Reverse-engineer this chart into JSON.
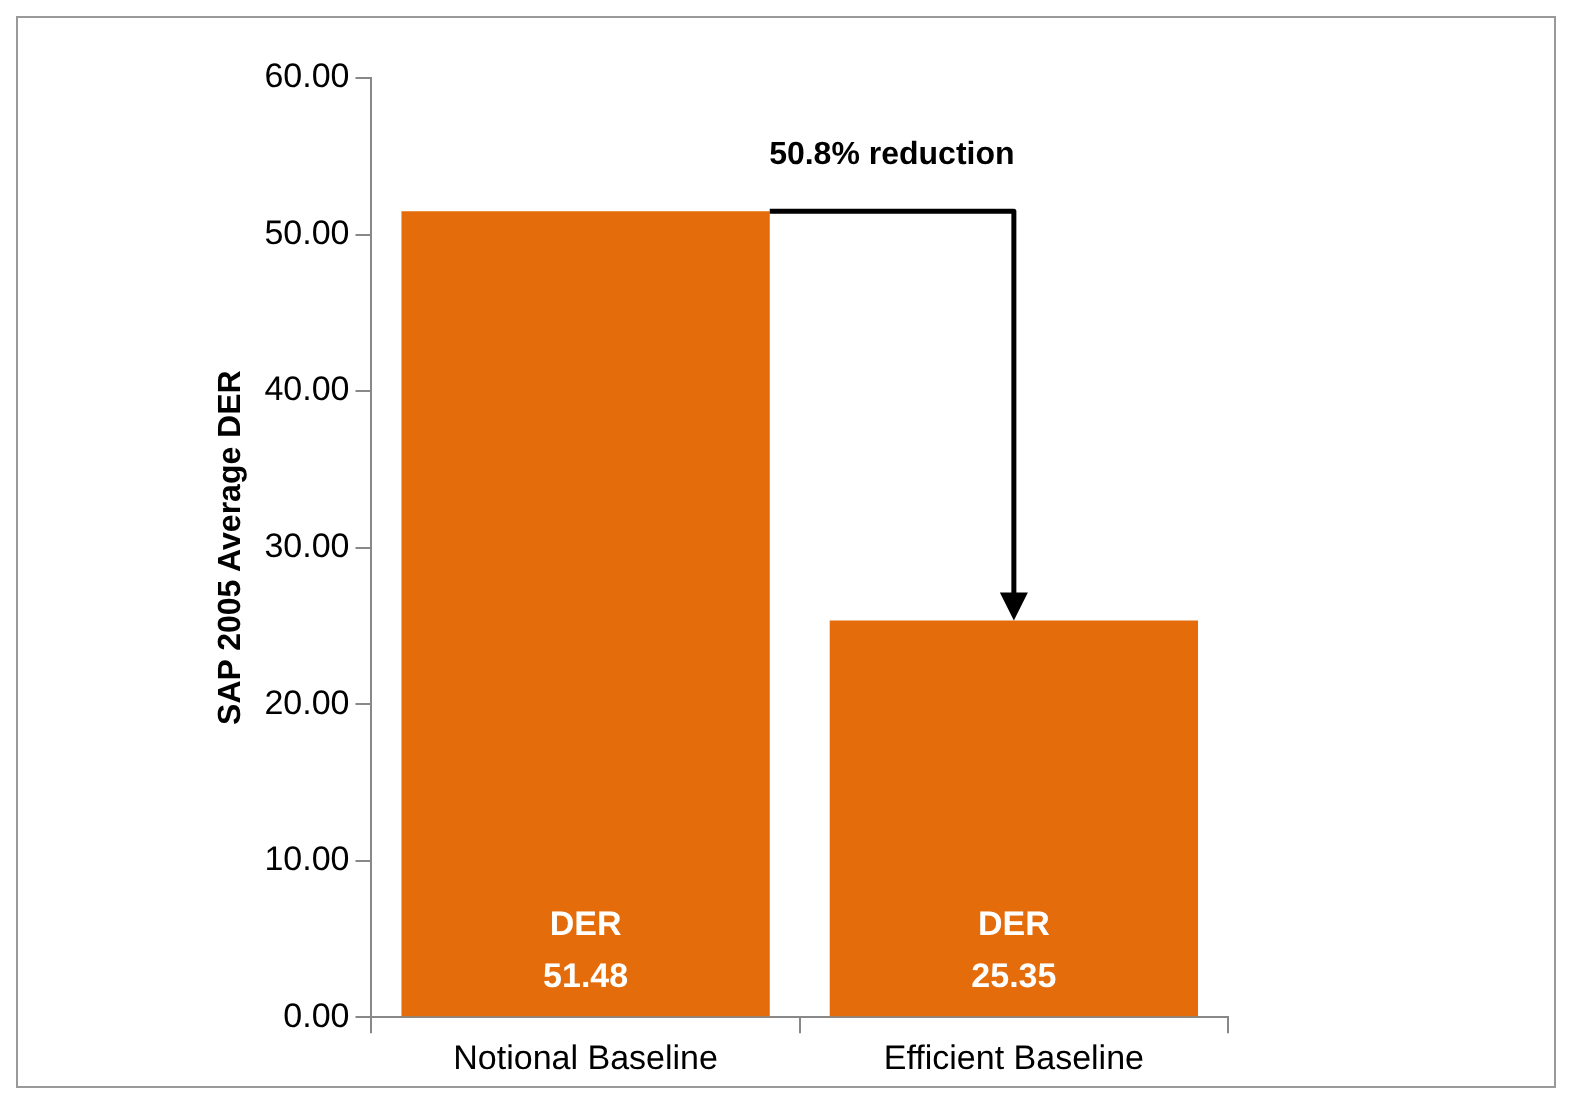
{
  "chart_data": {
    "type": "bar",
    "categories": [
      "Notional Baseline",
      "Efficient Baseline"
    ],
    "values": [
      51.48,
      25.35
    ],
    "color": "#e46c0a",
    "value_labels": [
      "DER\n51.48",
      "DER\n25.35"
    ],
    "ylabel": "SAP 2005 Average DER",
    "ylim": [
      0,
      60
    ],
    "yticks": [
      {
        "value": 0,
        "label": "0.00"
      },
      {
        "value": 10,
        "label": "10.00"
      },
      {
        "value": 20,
        "label": "20.00"
      },
      {
        "value": 30,
        "label": "30.00"
      },
      {
        "value": 40,
        "label": "40.00"
      },
      {
        "value": 50,
        "label": "50.00"
      },
      {
        "value": 60,
        "label": "60.00"
      }
    ],
    "annotations": [
      "50.8% reduction"
    ],
    "grid": false,
    "legend": false
  }
}
